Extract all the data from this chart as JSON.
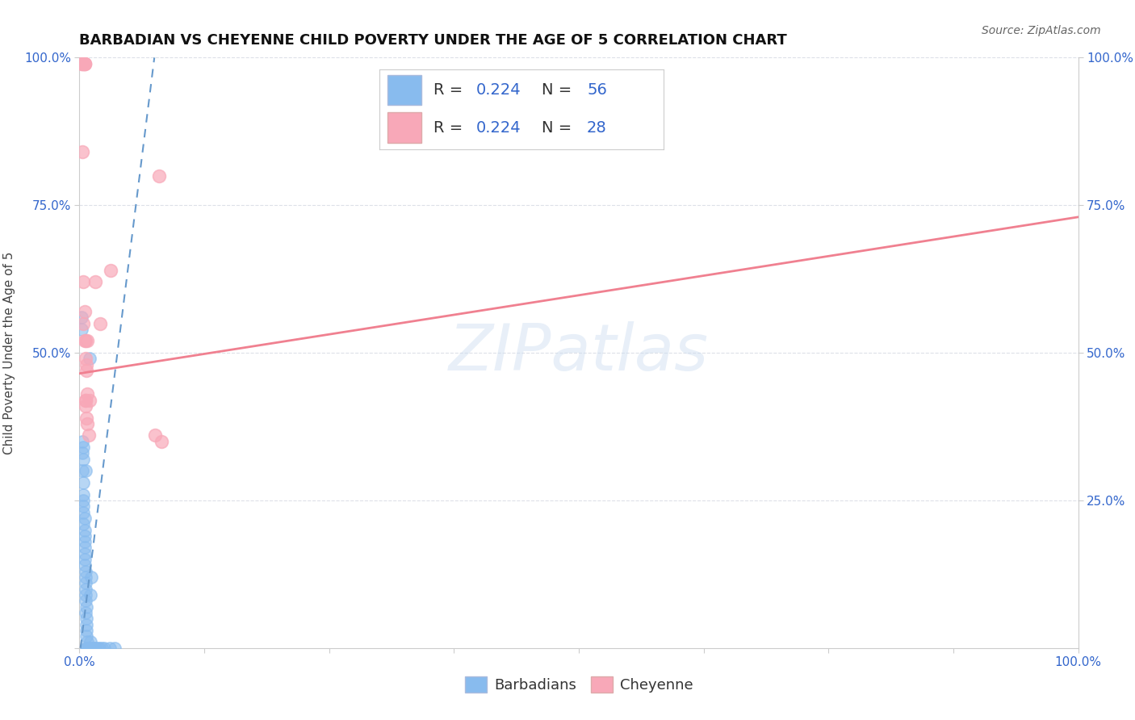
{
  "title": "BARBADIAN VS CHEYENNE CHILD POVERTY UNDER THE AGE OF 5 CORRELATION CHART",
  "source": "Source: ZipAtlas.com",
  "ylabel": "Child Poverty Under the Age of 5",
  "xlim": [
    0,
    1.0
  ],
  "ylim": [
    0,
    1.0
  ],
  "xticks": [
    0.0,
    0.125,
    0.25,
    0.375,
    0.5,
    0.625,
    0.75,
    0.875,
    1.0
  ],
  "yticks": [
    0.0,
    0.25,
    0.5,
    0.75,
    1.0
  ],
  "xtick_labels_shown": {
    "0.0": "0.0%",
    "1.0": "100.0%"
  },
  "ytick_labels_left": [
    "",
    "",
    "50.0%",
    "75.0%",
    "100.0%"
  ],
  "ytick_labels_right": [
    "25.0%",
    "50.0%",
    "75.0%",
    "100.0%"
  ],
  "barbadians_points": [
    [
      0.002,
      0.54
    ],
    [
      0.002,
      0.56
    ],
    [
      0.003,
      0.33
    ],
    [
      0.003,
      0.35
    ],
    [
      0.004,
      0.34
    ],
    [
      0.004,
      0.32
    ],
    [
      0.004,
      0.28
    ],
    [
      0.004,
      0.26
    ],
    [
      0.004,
      0.24
    ],
    [
      0.004,
      0.23
    ],
    [
      0.005,
      0.22
    ],
    [
      0.005,
      0.2
    ],
    [
      0.005,
      0.18
    ],
    [
      0.005,
      0.17
    ],
    [
      0.005,
      0.16
    ],
    [
      0.005,
      0.14
    ],
    [
      0.006,
      0.13
    ],
    [
      0.006,
      0.12
    ],
    [
      0.006,
      0.11
    ],
    [
      0.006,
      0.1
    ],
    [
      0.006,
      0.09
    ],
    [
      0.006,
      0.08
    ],
    [
      0.007,
      0.07
    ],
    [
      0.007,
      0.05
    ],
    [
      0.007,
      0.04
    ],
    [
      0.007,
      0.03
    ],
    [
      0.007,
      0.02
    ],
    [
      0.008,
      0.01
    ],
    [
      0.008,
      0.0
    ],
    [
      0.008,
      0.0
    ],
    [
      0.009,
      0.0
    ],
    [
      0.009,
      0.0
    ],
    [
      0.01,
      0.49
    ],
    [
      0.011,
      0.01
    ],
    [
      0.011,
      0.09
    ],
    [
      0.012,
      0.12
    ],
    [
      0.013,
      0.0
    ],
    [
      0.014,
      0.0
    ],
    [
      0.015,
      0.0
    ],
    [
      0.016,
      0.0
    ],
    [
      0.018,
      0.0
    ],
    [
      0.02,
      0.0
    ],
    [
      0.022,
      0.0
    ],
    [
      0.025,
      0.0
    ],
    [
      0.03,
      0.0
    ],
    [
      0.035,
      0.0
    ],
    [
      0.004,
      0.25
    ],
    [
      0.005,
      0.15
    ],
    [
      0.006,
      0.06
    ],
    [
      0.007,
      0.0
    ],
    [
      0.008,
      0.0
    ],
    [
      0.009,
      0.0
    ],
    [
      0.003,
      0.3
    ],
    [
      0.004,
      0.21
    ],
    [
      0.005,
      0.19
    ],
    [
      0.006,
      0.3
    ]
  ],
  "cheyenne_points": [
    [
      0.002,
      0.99
    ],
    [
      0.003,
      0.99
    ],
    [
      0.004,
      0.99
    ],
    [
      0.005,
      0.99
    ],
    [
      0.005,
      0.99
    ],
    [
      0.005,
      0.99
    ],
    [
      0.003,
      0.84
    ],
    [
      0.004,
      0.62
    ],
    [
      0.004,
      0.55
    ],
    [
      0.005,
      0.57
    ],
    [
      0.005,
      0.52
    ],
    [
      0.006,
      0.52
    ],
    [
      0.006,
      0.49
    ],
    [
      0.007,
      0.48
    ],
    [
      0.007,
      0.47
    ],
    [
      0.008,
      0.43
    ],
    [
      0.006,
      0.42
    ],
    [
      0.006,
      0.42
    ],
    [
      0.006,
      0.41
    ],
    [
      0.007,
      0.39
    ],
    [
      0.008,
      0.52
    ],
    [
      0.008,
      0.38
    ],
    [
      0.009,
      0.36
    ],
    [
      0.01,
      0.42
    ],
    [
      0.016,
      0.62
    ],
    [
      0.021,
      0.55
    ],
    [
      0.031,
      0.64
    ],
    [
      0.076,
      0.36
    ],
    [
      0.08,
      0.8
    ],
    [
      0.082,
      0.35
    ]
  ],
  "barbadians_line_x": [
    0.001,
    0.075
  ],
  "barbadians_line_y": [
    0.0,
    1.0
  ],
  "cheyenne_line_x": [
    0.0,
    1.0
  ],
  "cheyenne_line_y": [
    0.465,
    0.73
  ],
  "barbadians_color": "#88bbee",
  "cheyenne_color": "#f8a8b8",
  "blue_line_color": "#6699cc",
  "pink_line_color": "#f08090",
  "watermark_text": "ZIPatlas",
  "background_color": "#ffffff",
  "grid_color": "#dde0e8",
  "title_fontsize": 13,
  "axis_label_fontsize": 11,
  "tick_fontsize": 11,
  "source_fontsize": 10,
  "legend_R_color": "#333333",
  "legend_N_color": "#3366cc",
  "legend_val_color": "#3366cc"
}
